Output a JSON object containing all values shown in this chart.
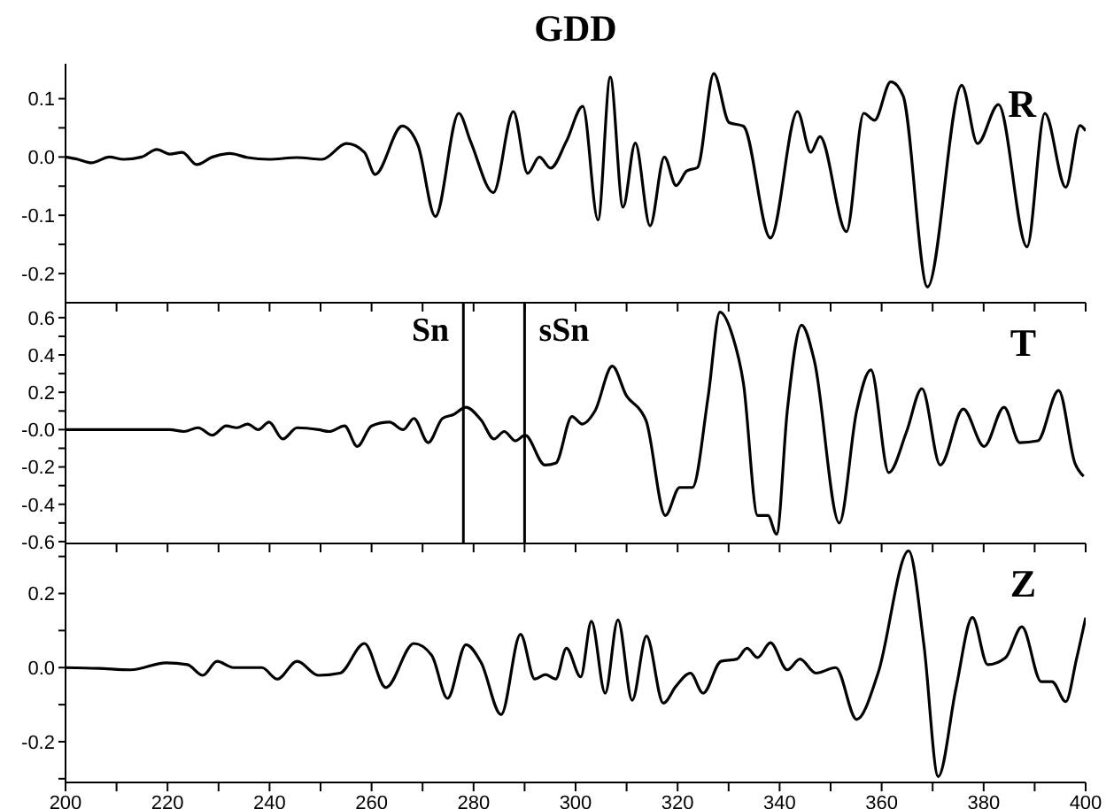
{
  "chart_data": [
    {
      "type": "line",
      "title": "GDD",
      "tick_labels": "y",
      "xlim": [
        200,
        400
      ],
      "xticks": [
        200,
        {
          "value": 210,
          "label": null
        },
        220,
        {
          "value": 230,
          "label": null
        },
        240,
        {
          "value": 250,
          "label": null
        },
        260,
        {
          "value": 270,
          "label": null
        },
        280,
        {
          "value": 290,
          "label": null
        },
        300,
        {
          "value": 310,
          "label": null
        },
        320,
        {
          "value": 330,
          "label": null
        },
        340,
        {
          "value": 350,
          "label": null
        },
        360,
        {
          "value": 370,
          "label": null
        },
        380,
        {
          "value": 390,
          "label": null
        },
        400
      ],
      "ylim": [
        -0.25,
        0.16
      ],
      "yticks": [
        0.1,
        {
          "value": 0.05,
          "label": null
        },
        {
          "value": 0,
          "label": "0.0"
        },
        {
          "value": -0.05,
          "label": null
        },
        -0.1,
        {
          "value": -0.15,
          "label": null
        },
        -0.2
      ],
      "series": [
        {
          "name": "R",
          "color": "#000000",
          "x": [
            200,
            202.4,
            205.1,
            208.6,
            211.4,
            214.9,
            217.9,
            220.4,
            222.9,
            225.7,
            228.8,
            232.2,
            235.7,
            239.9,
            245.4,
            250.3,
            255.1,
            258.6,
            260.7,
            266,
            269.1,
            272.5,
            277.1,
            279.4,
            283.9,
            287.8,
            290.6,
            292.9,
            295.1,
            298.2,
            301.4,
            304.4,
            306.8,
            309.3,
            311.7,
            314.6,
            317.4,
            319.7,
            321.8,
            323.9,
            327.1,
            330.1,
            332.9,
            338.2,
            343.5,
            346.1,
            347.9,
            353.1,
            356.5,
            358.6,
            361.8,
            364.2,
            369,
            375.7,
            378.8,
            382.9,
            388.5,
            392,
            396.1,
            398.9,
            400
          ],
          "values": [
            0,
            -0.004,
            -0.01,
            0,
            -0.004,
            0,
            0.013,
            0.005,
            0.008,
            -0.013,
            0,
            0.006,
            -0.001,
            -0.004,
            -0.001,
            -0.004,
            0.023,
            0.008,
            -0.03,
            0.053,
            0.02,
            -0.102,
            0.075,
            0.027,
            -0.061,
            0.078,
            -0.028,
            0,
            -0.019,
            0.027,
            0.087,
            -0.108,
            0.137,
            -0.086,
            0.024,
            -0.118,
            0,
            -0.049,
            -0.024,
            -0.018,
            0.143,
            0.059,
            0.053,
            -0.139,
            0.078,
            0.008,
            0.035,
            -0.128,
            0.075,
            0.063,
            0.129,
            0.105,
            -0.223,
            0.123,
            0.023,
            0.09,
            -0.154,
            0.075,
            -0.052,
            0.054,
            0.045
          ]
        }
      ]
    },
    {
      "type": "line",
      "tick_labels": "y",
      "xlim": [
        200,
        400
      ],
      "xticks": [
        200,
        {
          "value": 210,
          "label": null
        },
        220,
        {
          "value": 230,
          "label": null
        },
        240,
        {
          "value": 250,
          "label": null
        },
        260,
        {
          "value": 270,
          "label": null
        },
        280,
        {
          "value": 290,
          "label": null
        },
        300,
        {
          "value": 310,
          "label": null
        },
        320,
        {
          "value": 330,
          "label": null
        },
        340,
        {
          "value": 350,
          "label": null
        },
        360,
        {
          "value": 370,
          "label": null
        },
        380,
        {
          "value": 390,
          "label": null
        },
        400
      ],
      "ylim": [
        -0.61,
        0.68
      ],
      "yticks": [
        0.6,
        {
          "value": 0.5,
          "label": null
        },
        0.4,
        {
          "value": 0.3,
          "label": null
        },
        0.2,
        {
          "value": 0.1,
          "label": null
        },
        {
          "value": 0,
          "label": "-0.0"
        },
        {
          "value": -0.1,
          "label": null
        },
        -0.2,
        {
          "value": -0.3,
          "label": null
        },
        -0.4,
        {
          "value": -0.5,
          "label": null
        },
        -0.6
      ],
      "ref_lines": [
        {
          "axis": "x",
          "value": 278,
          "label": "Sn",
          "color": "#000000"
        },
        {
          "axis": "x",
          "value": 290,
          "label": "sSn",
          "color": "#000000"
        }
      ],
      "series": [
        {
          "name": "T",
          "color": "#000000",
          "x": [
            200,
            208,
            214.9,
            220.4,
            223.2,
            226,
            228.8,
            231.5,
            233.6,
            235.7,
            237.8,
            239.9,
            242.6,
            245.4,
            249.6,
            251.7,
            254.7,
            257.2,
            260,
            263.5,
            266.2,
            268.3,
            271.1,
            273.9,
            276,
            278.5,
            281.5,
            284,
            286,
            288.2,
            290.1,
            294,
            296.1,
            299.3,
            301.3,
            303.8,
            307.2,
            310,
            312.8,
            313.8,
            317.6,
            320.4,
            322.9,
            326,
            328.3,
            330.8,
            332.9,
            335.7,
            337.7,
            339.4,
            341.5,
            344.3,
            346.8,
            351.7,
            355.1,
            357.9,
            361.4,
            364.9,
            367.9,
            371.5,
            376,
            380.1,
            384,
            387.1,
            390.6,
            394.7,
            397.9,
            399.6
          ],
          "values": [
            0,
            0,
            0,
            0,
            -0.01,
            0.01,
            -0.03,
            0.02,
            0.01,
            0.03,
            0,
            0.04,
            -0.05,
            0.01,
            0,
            -0.01,
            0.02,
            -0.09,
            0.02,
            0.04,
            0,
            0.06,
            -0.07,
            0.06,
            0.08,
            0.12,
            0.05,
            -0.05,
            -0.01,
            -0.06,
            -0.03,
            -0.19,
            -0.18,
            0.07,
            0.03,
            0.1,
            0.34,
            0.18,
            0.1,
            0.05,
            -0.46,
            -0.31,
            -0.31,
            0.18,
            0.63,
            0.5,
            0.25,
            -0.46,
            -0.46,
            -0.56,
            0.1,
            0.56,
            0.37,
            -0.5,
            0.1,
            0.32,
            -0.23,
            -0.01,
            0.22,
            -0.19,
            0.11,
            -0.09,
            0.12,
            -0.07,
            -0.06,
            0.21,
            -0.18,
            -0.25
          ]
        }
      ]
    },
    {
      "type": "line",
      "xlim": [
        200,
        400
      ],
      "xticks": [
        200,
        {
          "value": 210,
          "label": null
        },
        220,
        {
          "value": 230,
          "label": null
        },
        240,
        {
          "value": 250,
          "label": null
        },
        260,
        {
          "value": 270,
          "label": null
        },
        280,
        {
          "value": 290,
          "label": null
        },
        300,
        {
          "value": 310,
          "label": null
        },
        320,
        {
          "value": 330,
          "label": null
        },
        340,
        {
          "value": 350,
          "label": null
        },
        360,
        {
          "value": 370,
          "label": null
        },
        380,
        {
          "value": 390,
          "label": null
        },
        400
      ],
      "ylim": [
        -0.31,
        0.335
      ],
      "yticks": [
        {
          "value": 0.3,
          "label": null
        },
        0.2,
        {
          "value": 0.1,
          "label": null
        },
        {
          "value": 0,
          "label": "0.0"
        },
        {
          "value": -0.1,
          "label": null
        },
        -0.2,
        {
          "value": -0.3,
          "label": null
        }
      ],
      "series": [
        {
          "name": "Z",
          "color": "#000000",
          "x": [
            200,
            206.5,
            212.8,
            219.7,
            223.9,
            226.9,
            229.7,
            232.9,
            238.5,
            241.5,
            245.4,
            249.6,
            253.8,
            258.6,
            262.8,
            268.3,
            271.8,
            274.9,
            278.5,
            281.5,
            285.4,
            289.2,
            292,
            294.1,
            296.1,
            298.2,
            301,
            303.1,
            305.8,
            308.3,
            311.1,
            313.9,
            317.2,
            319.7,
            322.5,
            325,
            328.5,
            331.6,
            333.6,
            335.7,
            338.2,
            341.5,
            344,
            347.1,
            351,
            355.1,
            359.3,
            365.3,
            368.3,
            371.1,
            374.6,
            377.8,
            380.8,
            384.3,
            387.5,
            391.3,
            393.4,
            396.1,
            398.2,
            400
          ],
          "values": [
            0,
            -0.002,
            -0.006,
            0.013,
            0.008,
            -0.021,
            0.017,
            0,
            0,
            -0.031,
            0.017,
            -0.021,
            -0.015,
            0.065,
            -0.054,
            0.065,
            0.033,
            -0.083,
            0.062,
            0.013,
            -0.127,
            0.09,
            -0.031,
            -0.019,
            -0.031,
            0.052,
            -0.025,
            0.125,
            -0.069,
            0.129,
            -0.088,
            0.085,
            -0.096,
            -0.05,
            -0.015,
            -0.069,
            0.017,
            0.023,
            0.052,
            0.027,
            0.067,
            -0.006,
            0.023,
            -0.015,
            0,
            -0.14,
            -0.015,
            0.315,
            0.06,
            -0.294,
            -0.054,
            0.135,
            0.008,
            0.027,
            0.11,
            -0.038,
            -0.038,
            -0.092,
            0.023,
            0.135
          ]
        }
      ]
    }
  ]
}
